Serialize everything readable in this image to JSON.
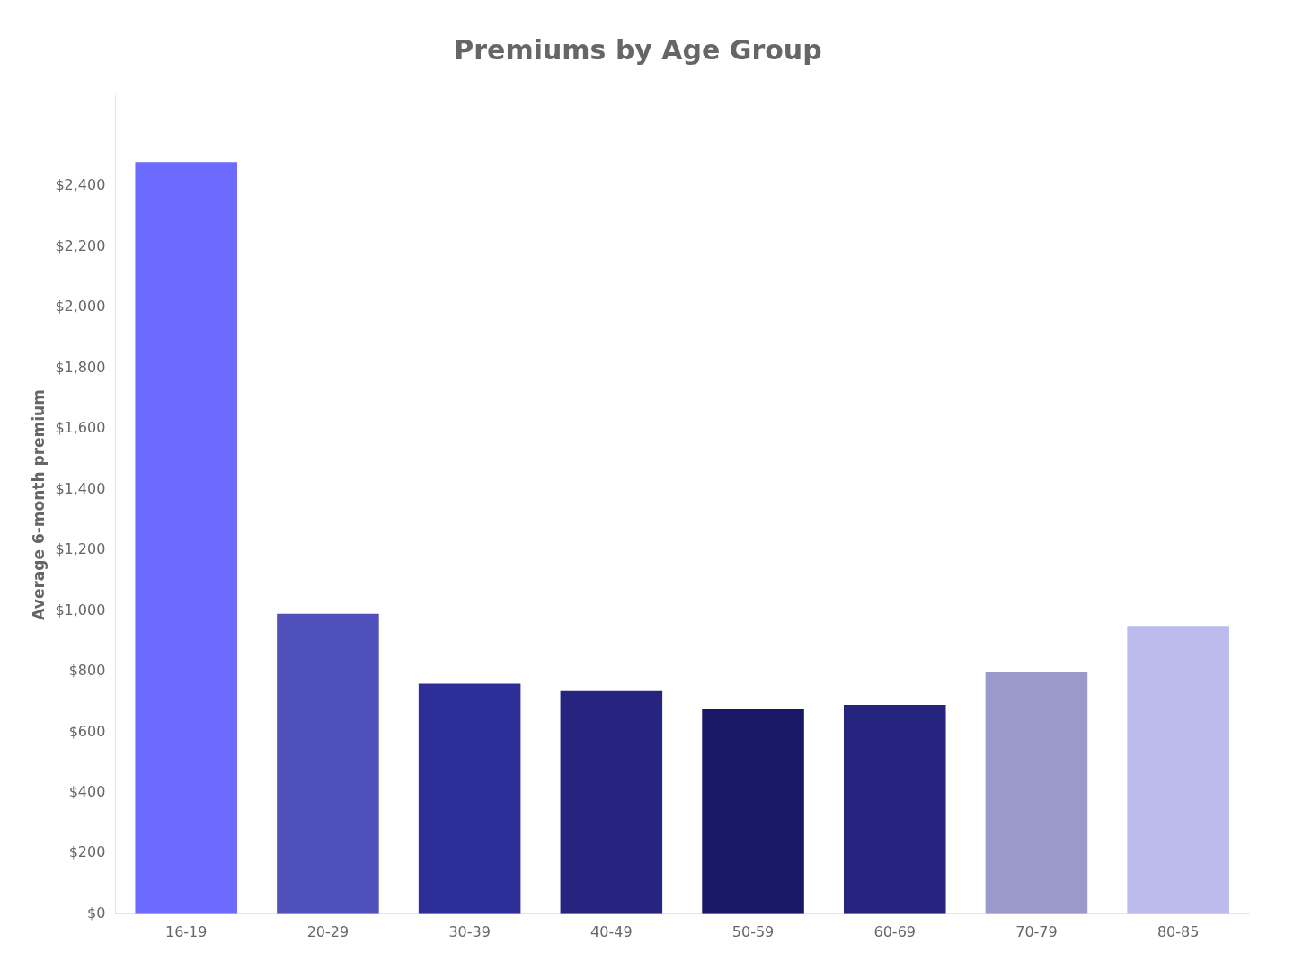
{
  "chart_data": {
    "type": "bar",
    "title": "Premiums by Age Group",
    "categories": [
      "16-19",
      "20-29",
      "30-39",
      "40-49",
      "50-59",
      "60-69",
      "70-79",
      "80-85"
    ],
    "values": [
      2480,
      990,
      760,
      735,
      675,
      690,
      800,
      950
    ],
    "colors": [
      "#6B6BFF",
      "#5050BB",
      "#2E2E99",
      "#252580",
      "#181866",
      "#252580",
      "#9999CC",
      "#BBBBEE"
    ],
    "ylabel": "Average 6-month premium",
    "ylim": [
      0,
      2700
    ],
    "yticks": [
      {
        "value": 0,
        "label": "$0"
      },
      {
        "value": 200,
        "label": "$200"
      },
      {
        "value": 400,
        "label": "$400"
      },
      {
        "value": 600,
        "label": "$600"
      },
      {
        "value": 800,
        "label": "$800"
      },
      {
        "value": 1000,
        "label": "$1,000"
      },
      {
        "value": 1200,
        "label": "$1,200"
      },
      {
        "value": 1400,
        "label": "$1,400"
      },
      {
        "value": 1600,
        "label": "$1,600"
      },
      {
        "value": 1800,
        "label": "$1,800"
      },
      {
        "value": 2000,
        "label": "$2,000"
      },
      {
        "value": 2200,
        "label": "$2,200"
      },
      {
        "value": 2400,
        "label": "$2,400"
      }
    ],
    "grid": false
  }
}
